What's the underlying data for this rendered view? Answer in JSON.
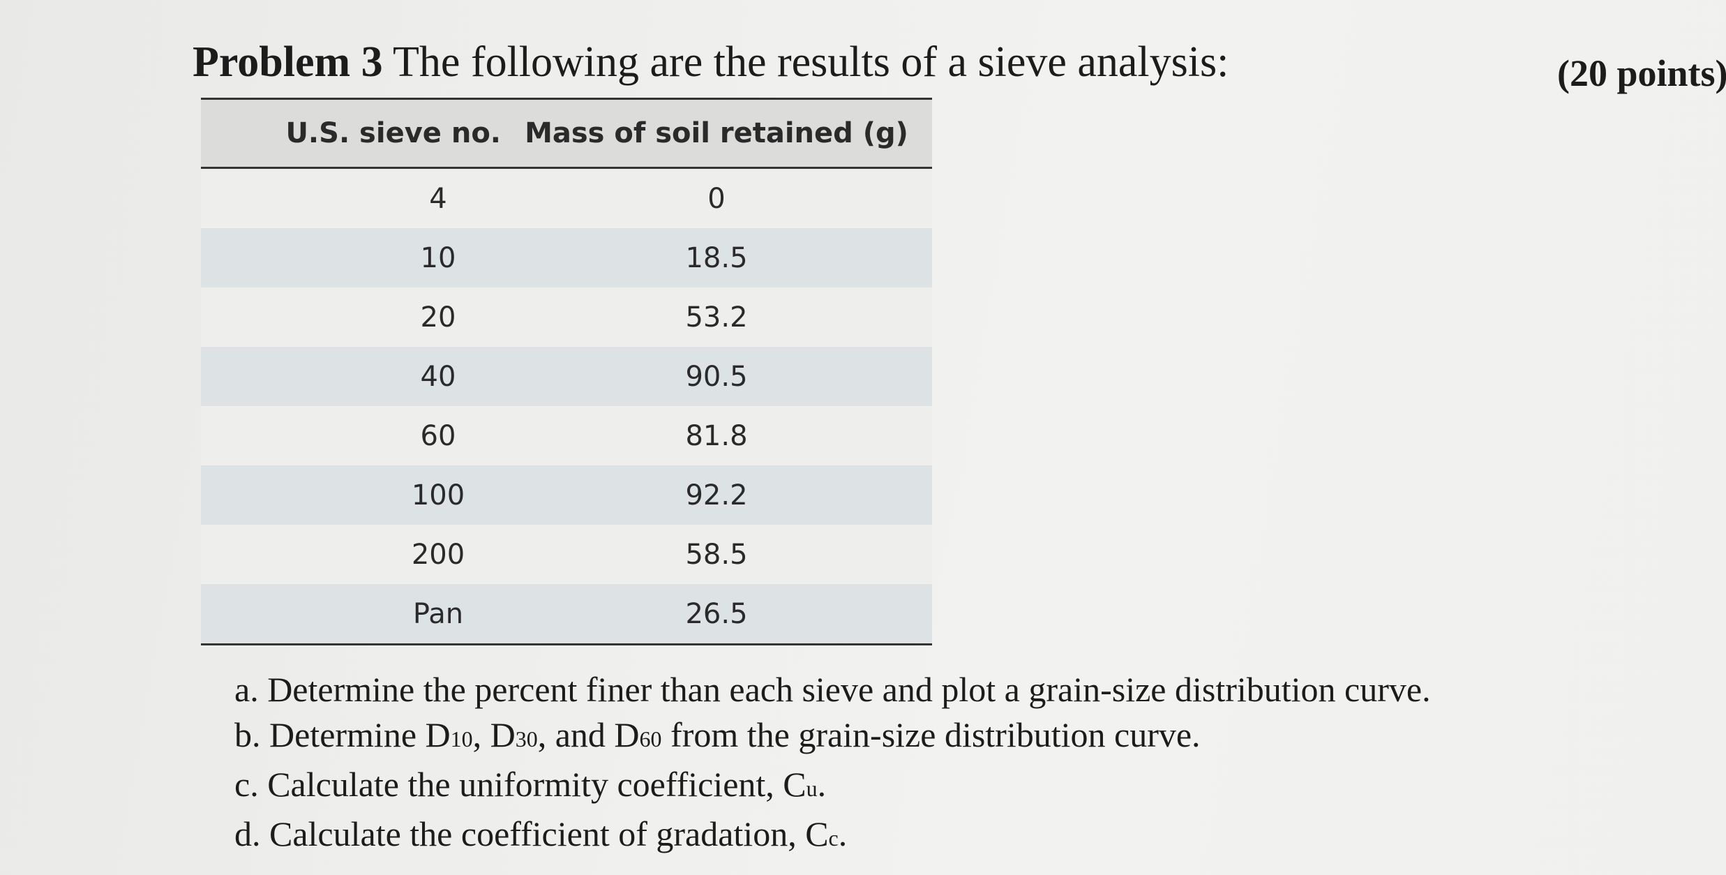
{
  "header": {
    "problem_label": "Problem 3",
    "intro": "The following are the results of a sieve analysis:",
    "points": "(20 points)"
  },
  "table": {
    "columns": [
      "U.S. sieve no.",
      "Mass of soil retained (g)"
    ],
    "rows": [
      [
        "4",
        "0"
      ],
      [
        "10",
        "18.5"
      ],
      [
        "20",
        "53.2"
      ],
      [
        "40",
        "90.5"
      ],
      [
        "60",
        "81.8"
      ],
      [
        "100",
        "92.2"
      ],
      [
        "200",
        "58.5"
      ],
      [
        "Pan",
        "26.5"
      ]
    ]
  },
  "questions": {
    "a": "a. Determine the percent finer than each sieve and plot a grain-size distribution curve.",
    "b": {
      "prefix": "b. Determine D",
      "s1": "10",
      "t1": ", D",
      "s2": "30",
      "t2": ", and D",
      "s3": "60",
      "t3": " from the grain-size distribution curve."
    },
    "c": {
      "prefix": "c. Calculate the uniformity coefficient, C",
      "sub": "u",
      "suffix": "."
    },
    "d": {
      "prefix": "d. Calculate the coefficient of gradation, C",
      "sub": "c",
      "suffix": "."
    }
  }
}
